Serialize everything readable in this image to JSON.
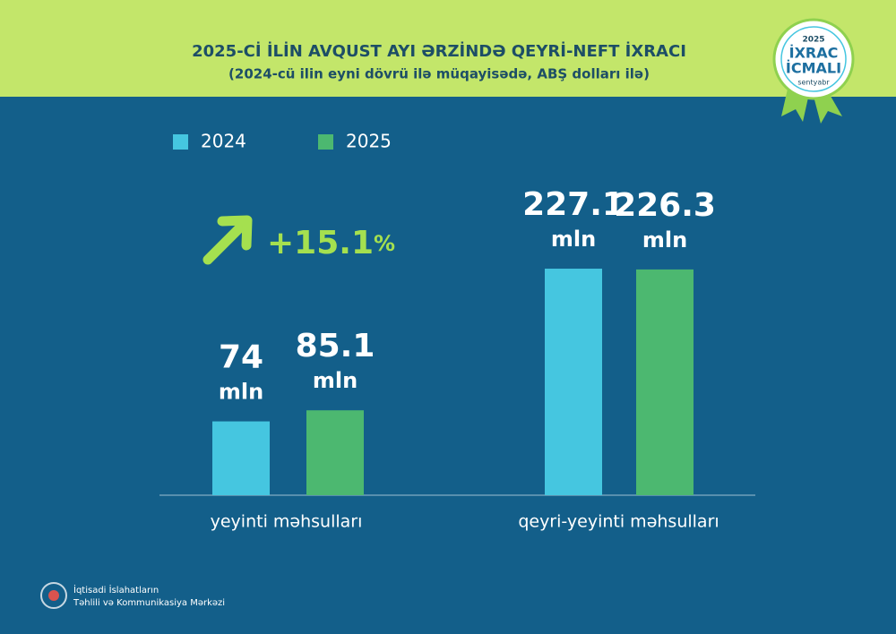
{
  "chart_data": {
    "type": "bar",
    "title": "2025-Cİ İLİN AVQUST AYI ƏRZİNDƏ QEYRİ-NEFT İXRACI",
    "subtitle": "(2024-cü ilin eyni dövrü ilə müqayisədə, ABŞ dolları ilə)",
    "categories": [
      "yeyinti məhsulları",
      "qeyri-yeyinti məhsulları"
    ],
    "series": [
      {
        "name": "2024",
        "color": "#45c6e0",
        "values": [
          74,
          227.1
        ]
      },
      {
        "name": "2025",
        "color": "#4cb870",
        "values": [
          85.1,
          226.3
        ]
      }
    ],
    "unit": "mln",
    "growth": "+15.1",
    "growth_unit": "%",
    "badge": {
      "year": "2025",
      "line1": "İXRAC",
      "line2": "İCMALI",
      "month": "sentyabr"
    },
    "footer": {
      "line1": "İqtisadi İslahatların",
      "line2": "Təhlili və Kommunikasiya Mərkəzi"
    }
  }
}
